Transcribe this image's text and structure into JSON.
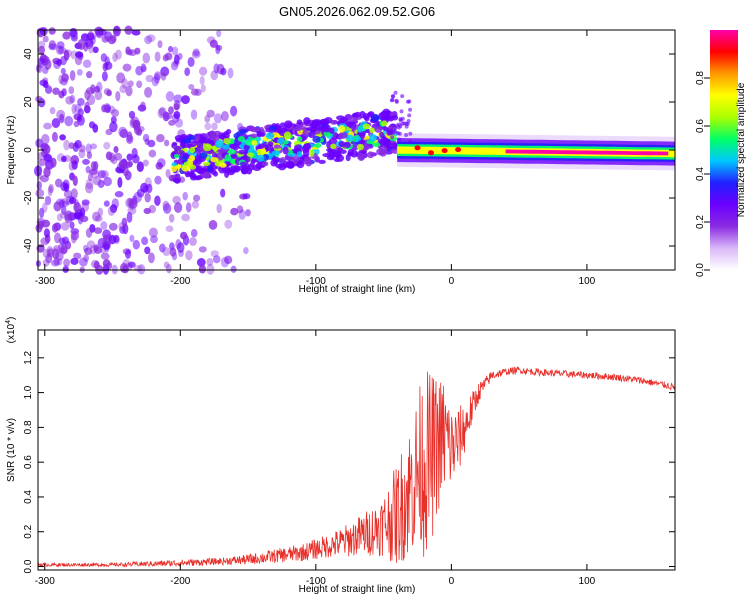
{
  "title": "GN05.2026.062.09.52.G06",
  "chart_data": [
    {
      "type": "heatmap",
      "title": "GN05.2026.062.09.52.G06",
      "xlabel": "Height of straight line (km)",
      "ylabel": "Frequency (Hz)",
      "xlim": [
        -305,
        165
      ],
      "ylim": [
        -50,
        50
      ],
      "xticks": [
        -300,
        -200,
        -100,
        0,
        100
      ],
      "yticks": [
        -40,
        -20,
        0,
        20,
        40
      ],
      "xtick_labels": [
        "-300",
        "-200",
        "-100",
        "0",
        "100"
      ],
      "ytick_labels": [
        "-40",
        "-20",
        "0",
        "20",
        "40"
      ],
      "colorbar": {
        "label": "Normalized spectral amplitude",
        "range": [
          0,
          1
        ],
        "ticks": [
          0.0,
          0.2,
          0.4,
          0.6,
          0.8
        ],
        "tick_labels": [
          "0.0",
          "0.2",
          "0.4",
          "0.6",
          "0.8"
        ],
        "colors": [
          "#ffffff",
          "#d9b8f7",
          "#8a2be2",
          "#6a00ff",
          "#2020ff",
          "#00c8ff",
          "#00ff66",
          "#aaff00",
          "#ffff00",
          "#ff9900",
          "#ff0000",
          "#ff00aa"
        ]
      },
      "features": {
        "noise_region_x": [
          -305,
          -150
        ],
        "scatter_band_x": [
          -205,
          -40
        ],
        "scatter_band_center_freq": [
          -4,
          8
        ],
        "coherent_line_x": [
          -40,
          165
        ],
        "coherent_line_freq": [
          0,
          -1.5
        ],
        "peak_region_x": [
          40,
          160
        ]
      }
    },
    {
      "type": "line",
      "title": "",
      "xlabel": "Height of straight line (km)",
      "ylabel": "SNR (10 * v/v)",
      "yscale_label": "(x10",
      "yscale_exp": "4",
      "yscale_close": ")",
      "xlim": [
        -305,
        165
      ],
      "ylim": [
        -0.02,
        1.36
      ],
      "xticks": [
        -300,
        -200,
        -100,
        0,
        100
      ],
      "yticks": [
        0.0,
        0.2,
        0.4,
        0.6,
        0.8,
        1.0,
        1.2
      ],
      "xtick_labels": [
        "-300",
        "-200",
        "-100",
        "0",
        "100"
      ],
      "ytick_labels": [
        "0.0",
        "0.2",
        "0.4",
        "0.6",
        "0.8",
        "1.0",
        "1.2"
      ],
      "series": [
        {
          "name": "SNR",
          "color": "#e8302a",
          "x": [
            -305,
            -250,
            -200,
            -170,
            -150,
            -130,
            -110,
            -100,
            -90,
            -80,
            -70,
            -60,
            -50,
            -40,
            -35,
            -30,
            -25,
            -20,
            -15,
            -10,
            -5,
            0,
            5,
            10,
            15,
            20,
            25,
            30,
            40,
            50,
            60,
            80,
            100,
            120,
            140,
            160,
            165
          ],
          "values": [
            0.01,
            0.01,
            0.02,
            0.03,
            0.04,
            0.06,
            0.08,
            0.1,
            0.12,
            0.14,
            0.17,
            0.2,
            0.24,
            0.3,
            0.38,
            0.45,
            0.55,
            0.6,
            0.62,
            0.7,
            0.75,
            0.68,
            0.72,
            0.8,
            0.9,
            1.0,
            1.05,
            1.1,
            1.12,
            1.13,
            1.12,
            1.11,
            1.1,
            1.09,
            1.07,
            1.04,
            1.03
          ],
          "noise_amplitude": [
            0.01,
            0.01,
            0.02,
            0.02,
            0.03,
            0.04,
            0.05,
            0.06,
            0.07,
            0.09,
            0.11,
            0.14,
            0.18,
            0.3,
            0.35,
            0.4,
            0.45,
            0.55,
            0.5,
            0.4,
            0.35,
            0.25,
            0.2,
            0.15,
            0.1,
            0.06,
            0.04,
            0.03,
            0.02,
            0.02,
            0.02,
            0.02,
            0.02,
            0.02,
            0.02,
            0.02,
            0.02
          ]
        }
      ]
    }
  ]
}
